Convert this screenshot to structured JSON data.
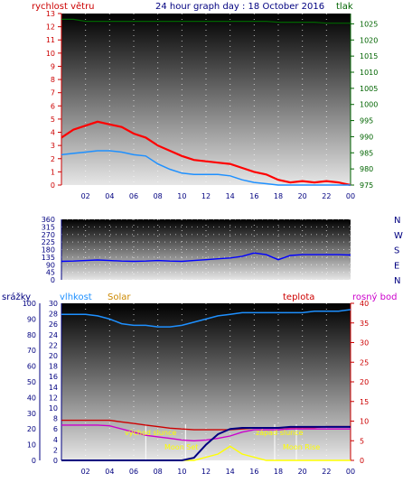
{
  "header": {
    "left": "rychlost větru",
    "center": "24 hour graph day : 18 October 2016",
    "right": "tlak"
  },
  "colors": {
    "wind": "#ff0000",
    "wind_avg": "#1e90ff",
    "pressure": "#006400",
    "direction": "#0000ff",
    "humidity": "#1e90ff",
    "temperature": "#cc0000",
    "dewpoint": "#cc00cc",
    "solar": "#ffff00",
    "rain": "#000080"
  },
  "x_labels": [
    "02",
    "04",
    "06",
    "08",
    "10",
    "12",
    "14",
    "16",
    "18",
    "20",
    "22",
    "00"
  ],
  "panel3": {
    "labels": {
      "rain": "srážky",
      "humidity": "vlhkost",
      "solar": "Solar",
      "temperature": "teplota",
      "dewpoint": "rosný bod"
    },
    "annotations": {
      "sunrise": "východ slunce",
      "sunset": "západ slunce",
      "moonset": "Moon Set",
      "moonrise": "Moon Rise"
    }
  },
  "chart_data": [
    {
      "type": "line",
      "x_hours": [
        0,
        1,
        2,
        3,
        4,
        5,
        6,
        7,
        8,
        9,
        10,
        11,
        12,
        13,
        14,
        15,
        16,
        17,
        18,
        19,
        20,
        21,
        22,
        23,
        24
      ],
      "left_axis": {
        "ylim": [
          0,
          13
        ],
        "ticks": [
          0,
          1,
          2,
          3,
          4,
          5,
          6,
          7,
          8,
          9,
          10,
          11,
          12,
          13
        ]
      },
      "right_axis": {
        "ylim": [
          975,
          1028.2
        ],
        "ticks": [
          975,
          980,
          985,
          990,
          995,
          1000,
          1005,
          1010,
          1015,
          1020,
          1025
        ]
      },
      "series": [
        {
          "values": [
            3.6,
            4.2,
            4.5,
            4.8,
            4.6,
            4.4,
            3.9,
            3.6,
            3.0,
            2.6,
            2.2,
            1.9,
            1.8,
            1.7,
            1.6,
            1.3,
            1.0,
            0.8,
            0.4,
            0.2,
            0.3,
            0.2,
            0.3,
            0.2,
            0.0
          ]
        },
        {
          "values": [
            2.3,
            2.4,
            2.5,
            2.6,
            2.6,
            2.5,
            2.3,
            2.2,
            1.6,
            1.2,
            0.9,
            0.8,
            0.8,
            0.8,
            0.7,
            0.4,
            0.2,
            0.1,
            0.0,
            0.0,
            0.0,
            0.0,
            0.0,
            0.0,
            0.0
          ]
        },
        {
          "axis": "right",
          "values": [
            1026.4,
            1026.4,
            1025.8,
            1025.8,
            1025.8,
            1025.8,
            1025.8,
            1025.8,
            1025.8,
            1025.8,
            1025.8,
            1025.8,
            1025.8,
            1025.8,
            1025.8,
            1025.8,
            1025.8,
            1025.8,
            1025.5,
            1025.5,
            1025.5,
            1025.5,
            1025.2,
            1025.2,
            1025.2
          ]
        }
      ]
    },
    {
      "type": "line",
      "x_hours": [
        0,
        1,
        2,
        3,
        4,
        5,
        6,
        7,
        8,
        9,
        10,
        11,
        12,
        13,
        14,
        15,
        16,
        17,
        18,
        19,
        20,
        21,
        22,
        23,
        24
      ],
      "left_axis": {
        "ylim": [
          0,
          360
        ],
        "ticks": [
          0,
          45,
          90,
          135,
          180,
          225,
          270,
          315,
          360
        ]
      },
      "right_axis_labels": [
        "N",
        "W",
        "S",
        "E",
        "N"
      ],
      "series": [
        {
          "values": [
            110,
            112,
            115,
            118,
            115,
            112,
            110,
            112,
            115,
            112,
            110,
            115,
            120,
            125,
            130,
            140,
            160,
            150,
            120,
            145,
            150,
            150,
            150,
            150,
            148
          ]
        }
      ]
    },
    {
      "type": "line",
      "x_hours": [
        0,
        1,
        2,
        3,
        4,
        5,
        6,
        7,
        8,
        9,
        10,
        11,
        12,
        13,
        14,
        15,
        16,
        17,
        18,
        19,
        20,
        21,
        22,
        23,
        24
      ],
      "left_axis_rain": {
        "ylim": [
          0,
          100
        ],
        "ticks": [
          0,
          10,
          20,
          30,
          40,
          50,
          60,
          70,
          80,
          90,
          100
        ]
      },
      "left_axis_humidity": {
        "ylim": [
          0,
          30
        ],
        "ticks": [
          0,
          2,
          4,
          6,
          8,
          10,
          12,
          14,
          16,
          18,
          20,
          22,
          24,
          26,
          28,
          30
        ]
      },
      "right_axis": {
        "ylim": [
          0,
          40
        ],
        "ticks": [
          0,
          5,
          10,
          15,
          20,
          25,
          30,
          35,
          40
        ]
      },
      "series": [
        {
          "axis": "rain",
          "values": [
            93,
            93,
            93,
            92,
            90,
            87,
            86,
            86,
            85,
            85,
            86,
            88,
            90,
            92,
            93,
            94,
            94,
            94,
            94,
            94,
            94,
            95,
            95,
            95,
            96
          ]
        },
        {
          "axis": "right",
          "values": [
            10.2,
            10.2,
            10.2,
            10.2,
            10.2,
            9.8,
            9.4,
            9.0,
            8.6,
            8.2,
            8.0,
            7.8,
            7.8,
            7.8,
            7.8,
            8.0,
            8.2,
            8.2,
            8.2,
            8.4,
            8.4,
            8.4,
            8.6,
            8.6,
            8.6
          ]
        },
        {
          "axis": "right",
          "values": [
            9.0,
            9.0,
            9.0,
            9.0,
            8.8,
            8.0,
            7.2,
            6.4,
            6.0,
            5.6,
            5.2,
            5.0,
            5.2,
            5.6,
            6.2,
            7.2,
            7.8,
            7.8,
            7.8,
            8.0,
            8.0,
            8.0,
            8.0,
            8.0,
            8.0
          ]
        },
        {
          "axis": "humidity",
          "values": [
            0,
            0,
            0,
            0,
            0,
            0,
            0,
            0,
            0,
            0,
            0,
            0.5,
            3.0,
            5.0,
            6.0,
            6.2,
            6.2,
            6.2,
            6.2,
            6.4,
            6.4,
            6.4,
            6.4,
            6.4,
            6.4
          ]
        },
        {
          "axis": "rain",
          "values": [
            0,
            0,
            0,
            0,
            0,
            0,
            0,
            0,
            0,
            0,
            0,
            0,
            2,
            4,
            9,
            4,
            2,
            0,
            0,
            0,
            0,
            0,
            0,
            0,
            0
          ]
        }
      ]
    }
  ]
}
